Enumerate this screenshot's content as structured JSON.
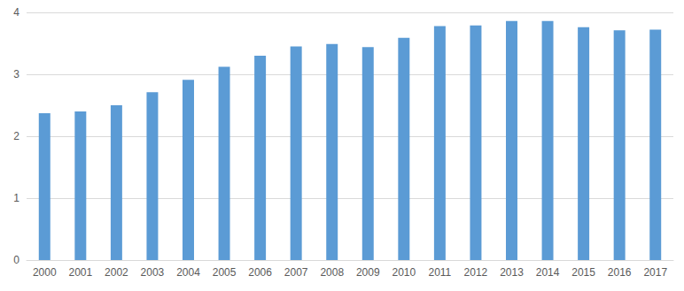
{
  "chart_data": {
    "type": "bar",
    "categories": [
      "2000",
      "2001",
      "2002",
      "2003",
      "2004",
      "2005",
      "2006",
      "2007",
      "2008",
      "2009",
      "2010",
      "2011",
      "2012",
      "2013",
      "2014",
      "2015",
      "2016",
      "2017"
    ],
    "values": [
      2.37,
      2.4,
      2.5,
      2.71,
      2.91,
      3.12,
      3.3,
      3.45,
      3.49,
      3.44,
      3.59,
      3.78,
      3.79,
      3.86,
      3.86,
      3.76,
      3.71,
      3.72
    ],
    "color": "#5b9bd5",
    "ylim": [
      0,
      4
    ],
    "yticks": [
      0,
      1,
      2,
      3,
      4
    ],
    "grid": true
  }
}
